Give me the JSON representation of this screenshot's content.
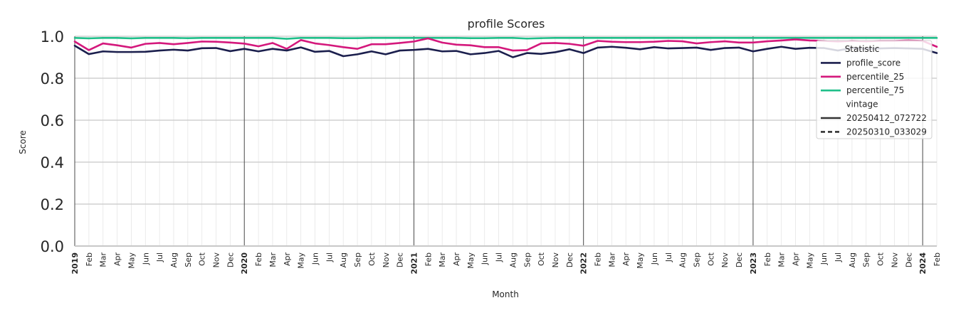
{
  "chart_data": {
    "type": "line",
    "title": "profile Scores",
    "xlabel": "Month",
    "ylabel": "Score",
    "ylim": [
      0.0,
      1.0
    ],
    "yticks": [
      "0.0",
      "0.2",
      "0.4",
      "0.6",
      "0.8",
      "1.0"
    ],
    "grid": true,
    "legend_position": "upper-right",
    "x": [
      "2019-01",
      "2019-02",
      "2019-03",
      "2019-04",
      "2019-05",
      "2019-06",
      "2019-07",
      "2019-08",
      "2019-09",
      "2019-10",
      "2019-11",
      "2019-12",
      "2020-01",
      "2020-02",
      "2020-03",
      "2020-04",
      "2020-05",
      "2020-06",
      "2020-07",
      "2020-08",
      "2020-09",
      "2020-10",
      "2020-11",
      "2020-12",
      "2021-01",
      "2021-02",
      "2021-03",
      "2021-04",
      "2021-05",
      "2021-06",
      "2021-07",
      "2021-08",
      "2021-09",
      "2021-10",
      "2021-11",
      "2021-12",
      "2022-01",
      "2022-02",
      "2022-03",
      "2022-04",
      "2022-05",
      "2022-06",
      "2022-07",
      "2022-08",
      "2022-09",
      "2022-10",
      "2022-11",
      "2022-12",
      "2023-01",
      "2023-02",
      "2023-03",
      "2023-04",
      "2023-05",
      "2023-06",
      "2023-07",
      "2023-08",
      "2023-09",
      "2023-10",
      "2023-11",
      "2023-12",
      "2024-01",
      "2024-02"
    ],
    "x_tick_labels": [
      "2019",
      "Feb",
      "Mar",
      "Apr",
      "May",
      "Jun",
      "Jul",
      "Aug",
      "Sep",
      "Oct",
      "Nov",
      "Dec",
      "2020",
      "Feb",
      "Mar",
      "Apr",
      "May",
      "Jun",
      "Jul",
      "Aug",
      "Sep",
      "Oct",
      "Nov",
      "Dec",
      "2021",
      "Feb",
      "Mar",
      "Apr",
      "May",
      "Jun",
      "Jul",
      "Aug",
      "Sep",
      "Oct",
      "Nov",
      "Dec",
      "2022",
      "Feb",
      "Mar",
      "Apr",
      "May",
      "Jun",
      "Jul",
      "Aug",
      "Sep",
      "Oct",
      "Nov",
      "Dec",
      "2023",
      "Feb",
      "Mar",
      "Apr",
      "May",
      "Jun",
      "Jul",
      "Aug",
      "Sep",
      "Oct",
      "Nov",
      "Dec",
      "2024",
      "Feb"
    ],
    "series": [
      {
        "name": "profile_score",
        "color": "#1b1f4d",
        "values": [
          0.955,
          0.915,
          0.928,
          0.925,
          0.925,
          0.926,
          0.932,
          0.936,
          0.932,
          0.943,
          0.944,
          0.929,
          0.94,
          0.928,
          0.94,
          0.932,
          0.947,
          0.926,
          0.93,
          0.905,
          0.914,
          0.928,
          0.914,
          0.932,
          0.935,
          0.94,
          0.928,
          0.93,
          0.914,
          0.92,
          0.93,
          0.9,
          0.92,
          0.916,
          0.924,
          0.938,
          0.92,
          0.946,
          0.95,
          0.945,
          0.938,
          0.948,
          0.942,
          0.944,
          0.946,
          0.935,
          0.944,
          0.946,
          0.928,
          0.94,
          0.95,
          0.94,
          0.945,
          0.944,
          0.932,
          0.944,
          0.94,
          0.942,
          0.944,
          0.942,
          0.94,
          0.92
        ]
      },
      {
        "name": "percentile_25",
        "color": "#d4187c",
        "values": [
          0.975,
          0.934,
          0.966,
          0.957,
          0.946,
          0.964,
          0.968,
          0.962,
          0.968,
          0.975,
          0.974,
          0.97,
          0.965,
          0.952,
          0.968,
          0.94,
          0.982,
          0.966,
          0.958,
          0.948,
          0.94,
          0.962,
          0.962,
          0.968,
          0.975,
          0.99,
          0.97,
          0.96,
          0.957,
          0.948,
          0.948,
          0.932,
          0.934,
          0.966,
          0.968,
          0.964,
          0.955,
          0.978,
          0.974,
          0.972,
          0.972,
          0.974,
          0.978,
          0.976,
          0.966,
          0.972,
          0.976,
          0.97,
          0.97,
          0.976,
          0.98,
          0.985,
          0.98,
          0.978,
          0.975,
          0.978,
          0.976,
          0.978,
          0.978,
          0.98,
          0.978,
          0.95
        ]
      },
      {
        "name": "percentile_75",
        "color": "#1fbf8a",
        "values": [
          0.992,
          0.99,
          0.992,
          0.992,
          0.99,
          0.992,
          0.992,
          0.992,
          0.991,
          0.992,
          0.992,
          0.992,
          0.992,
          0.992,
          0.992,
          0.988,
          0.992,
          0.992,
          0.992,
          0.991,
          0.991,
          0.992,
          0.992,
          0.992,
          0.992,
          0.992,
          0.992,
          0.992,
          0.991,
          0.991,
          0.992,
          0.992,
          0.989,
          0.991,
          0.992,
          0.992,
          0.992,
          0.992,
          0.992,
          0.992,
          0.992,
          0.992,
          0.992,
          0.992,
          0.992,
          0.992,
          0.992,
          0.992,
          0.992,
          0.992,
          0.992,
          0.992,
          0.992,
          0.992,
          0.992,
          0.992,
          0.992,
          0.992,
          0.992,
          0.992,
          0.992,
          0.992
        ]
      }
    ],
    "legend": {
      "entries": [
        {
          "kind": "header",
          "label": "Statistic"
        },
        {
          "kind": "line",
          "label": "profile_score",
          "color": "#1b1f4d",
          "dash": "solid"
        },
        {
          "kind": "line",
          "label": "percentile_25",
          "color": "#d4187c",
          "dash": "solid"
        },
        {
          "kind": "line",
          "label": "percentile_75",
          "color": "#1fbf8a",
          "dash": "solid"
        },
        {
          "kind": "header",
          "label": "vintage"
        },
        {
          "kind": "line",
          "label": "20250412_072722",
          "color": "#333333",
          "dash": "solid"
        },
        {
          "kind": "line",
          "label": "20250310_033029",
          "color": "#333333",
          "dash": "dashed"
        }
      ]
    }
  }
}
